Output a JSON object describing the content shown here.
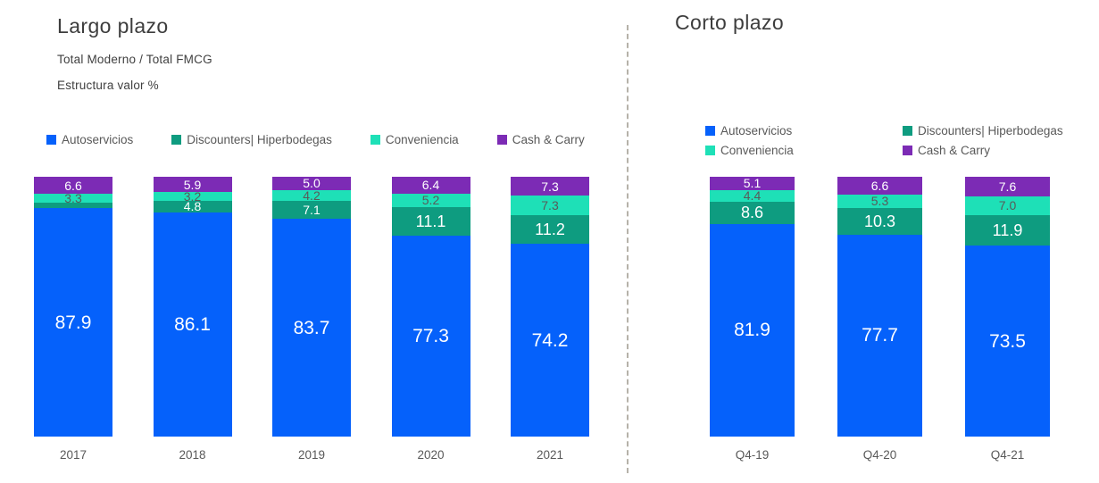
{
  "palette": {
    "Autoservicios": "#0561fb",
    "Discounters| Hiperbodegas": "#0e9c80",
    "Conveniencia": "#1ee0b7",
    "Cash & Carry": "#7c2bb5"
  },
  "label_text_colors": {
    "Autoservicios": "#ffffff",
    "Discounters| Hiperbodegas": "#ffffff",
    "Conveniencia": "#595959",
    "Cash & Carry": "#ffffff"
  },
  "chart_data": [
    {
      "type": "bar",
      "stacked": true,
      "title": "Largo plazo",
      "subtitle": "Total Moderno / Total FMCG",
      "unit_label": "Estructura valor %",
      "ylim": [
        0,
        100
      ],
      "grid": false,
      "legend_position": "top-single-row",
      "categories": [
        "2017",
        "2018",
        "2019",
        "2020",
        "2021"
      ],
      "series": [
        {
          "name": "Autoservicios",
          "values": [
            87.9,
            86.1,
            83.7,
            77.3,
            74.2
          ],
          "labels": [
            "87.9",
            "86.1",
            "83.7",
            "77.3",
            "74.2"
          ]
        },
        {
          "name": "Discounters| Hiperbodegas",
          "values": [
            2.2,
            4.8,
            7.1,
            11.1,
            11.2
          ],
          "labels": [
            "",
            "4.8",
            "7.1",
            "11.1",
            "11.2"
          ]
        },
        {
          "name": "Conveniencia",
          "values": [
            3.3,
            3.2,
            4.2,
            5.2,
            7.3
          ],
          "labels": [
            "3.3",
            "3.2",
            "4.2",
            "5.2",
            "7.3"
          ]
        },
        {
          "name": "Cash & Carry",
          "values": [
            6.6,
            5.9,
            5.0,
            6.4,
            7.3
          ],
          "labels": [
            "6.6",
            "5.9",
            "5.0",
            "6.4",
            "7.3"
          ]
        }
      ]
    },
    {
      "type": "bar",
      "stacked": true,
      "title": "Corto plazo",
      "ylim": [
        0,
        100
      ],
      "grid": false,
      "legend_position": "top-two-rows",
      "categories": [
        "Q4-19",
        "Q4-20",
        "Q4-21"
      ],
      "series": [
        {
          "name": "Autoservicios",
          "values": [
            81.9,
            77.7,
            73.5
          ],
          "labels": [
            "81.9",
            "77.7",
            "73.5"
          ]
        },
        {
          "name": "Discounters| Hiperbodegas",
          "values": [
            8.6,
            10.3,
            11.9
          ],
          "labels": [
            "8.6",
            "10.3",
            "11.9"
          ]
        },
        {
          "name": "Conveniencia",
          "values": [
            4.4,
            5.3,
            7.0
          ],
          "labels": [
            "4.4",
            "5.3",
            "7.0"
          ]
        },
        {
          "name": "Cash & Carry",
          "values": [
            5.1,
            6.6,
            7.6
          ],
          "labels": [
            "5.1",
            "6.6",
            "7.6"
          ]
        }
      ]
    }
  ]
}
